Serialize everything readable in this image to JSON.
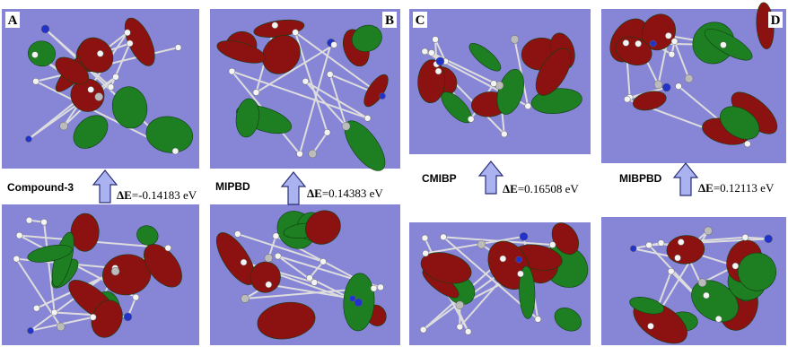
{
  "panels": [
    {
      "letter": "A",
      "compound": "Compound-3",
      "delta": "ΔE",
      "gap": "=-0.14183 eV"
    },
    {
      "letter": "B",
      "compound": "MIPBD",
      "delta": "ΔE",
      "gap": "=0.14383 eV"
    },
    {
      "letter": "C",
      "compound": "CMIBP",
      "delta": "ΔE",
      "gap": "=0.16508 eV"
    },
    {
      "letter": "D",
      "compound": "MIBPBD",
      "delta": "ΔE",
      "gap": "=0.12113 eV"
    }
  ]
}
